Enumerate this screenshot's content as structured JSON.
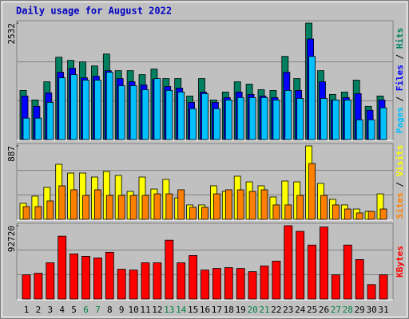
{
  "title": "Daily usage for August 2022",
  "categories": [
    "1",
    "2",
    "3",
    "4",
    "5",
    "6",
    "7",
    "8",
    "9",
    "10",
    "11",
    "12",
    "13",
    "14",
    "15",
    "16",
    "17",
    "18",
    "19",
    "20",
    "21",
    "22",
    "23",
    "24",
    "25",
    "26",
    "27",
    "28",
    "29",
    "30",
    "31"
  ],
  "category_colors": [
    "#000000",
    "#000000",
    "#000000",
    "#000000",
    "#000000",
    "#008040",
    "#008040",
    "#000000",
    "#000000",
    "#000000",
    "#000000",
    "#000000",
    "#008040",
    "#008040",
    "#000000",
    "#000000",
    "#000000",
    "#000000",
    "#000000",
    "#008040",
    "#008040",
    "#000000",
    "#000000",
    "#000000",
    "#000000",
    "#000000",
    "#008040",
    "#008040",
    "#000000",
    "#000000",
    "#000000"
  ],
  "chart_data": [
    {
      "type": "bar",
      "ylim": [
        0,
        2532
      ],
      "yticks": [
        2532
      ],
      "grid": true,
      "series": [
        {
          "name": "Hits",
          "color": "#008060",
          "values": [
            1068,
            861,
            1257,
            1791,
            1722,
            1688,
            1601,
            1860,
            1498,
            1498,
            1412,
            1533,
            1326,
            1326,
            947,
            1326,
            861,
            1033,
            1257,
            1205,
            1085,
            1068,
            1808,
            1326,
            2532,
            1498,
            982,
            1033,
            1292,
            723,
            947
          ]
        },
        {
          "name": "Files",
          "color": "#0000ff",
          "values": [
            947,
            723,
            1016,
            1464,
            1550,
            1343,
            1378,
            1498,
            1326,
            1257,
            1188,
            1309,
            1154,
            1119,
            809,
            1033,
            809,
            913,
            1033,
            982,
            947,
            913,
            1464,
            1068,
            2187,
            1257,
            861,
            913,
            999,
            637,
            861
          ]
        },
        {
          "name": "Pages",
          "color": "#00c0ff",
          "values": [
            465,
            465,
            809,
            1343,
            1412,
            1292,
            1292,
            1464,
            1171,
            1171,
            1085,
            1326,
            1068,
            1033,
            672,
            999,
            672,
            861,
            913,
            913,
            913,
            861,
            1068,
            895,
            1808,
            895,
            861,
            861,
            431,
            431,
            689
          ]
        }
      ]
    },
    {
      "type": "bar",
      "ylim": [
        0,
        887
      ],
      "yticks": [
        887
      ],
      "grid": true,
      "series": [
        {
          "name": "Visits",
          "color": "#ffff00",
          "values": [
            193,
            280,
            386,
            665,
            559,
            559,
            511,
            578,
            530,
            337,
            511,
            366,
            482,
            260,
            174,
            174,
            405,
            337,
            521,
            453,
            405,
            270,
            463,
            453,
            887,
            434,
            241,
            174,
            125,
            96,
            308
          ]
        },
        {
          "name": "Sites",
          "color": "#ff8000",
          "values": [
            154,
            154,
            222,
            405,
            357,
            289,
            357,
            289,
            289,
            289,
            289,
            308,
            308,
            357,
            145,
            145,
            308,
            357,
            357,
            337,
            357,
            174,
            174,
            289,
            675,
            289,
            174,
            125,
            77,
            96,
            125
          ]
        }
      ]
    },
    {
      "type": "bar",
      "ylim": [
        0,
        92720
      ],
      "yticks": [
        92720
      ],
      "grid": true,
      "series": [
        {
          "name": "KBytes",
          "color": "#ff0000",
          "values": [
            30570,
            32608,
            45855,
            79482,
            57064,
            54007,
            51969,
            59102,
            37703,
            36684,
            45855,
            45855,
            74387,
            45855,
            55026,
            36684,
            38722,
            39741,
            38722,
            34646,
            41779,
            47893,
            92720,
            85596,
            68273,
            91000,
            30570,
            68273,
            49931,
            18342,
            30570
          ]
        }
      ]
    }
  ]
}
